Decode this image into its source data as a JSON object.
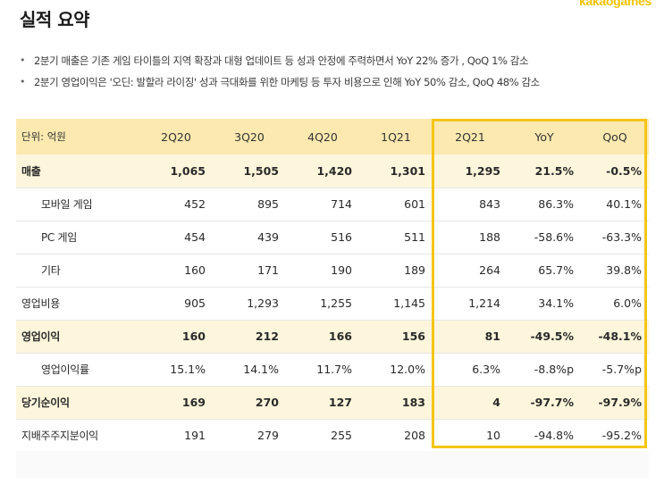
{
  "header": {
    "title": "실적 요약",
    "logo": "kakaogames"
  },
  "bullets": [
    "2분기 매출은 기존 게임 타이틀의 지역 확장과 대형 업데이트 등 성과 안정에 주력하면서 YoY 22% 증가 , QoQ 1% 감소",
    "2분기 영업이익은 '오딘: 발할라 라이징' 성과 극대화를 위한 마케팅 등 투자 비용으로 인해 YoY 50% 감소, QoQ 48% 감소"
  ],
  "table": {
    "unit": "단위: 억원",
    "columns": [
      "2Q20",
      "3Q20",
      "4Q20",
      "1Q21",
      "2Q21",
      "YoY",
      "QoQ"
    ],
    "rows": [
      {
        "label": "매출",
        "values": [
          "1,065",
          "1,505",
          "1,420",
          "1,301",
          "1,295",
          "21.5%",
          "-0.5%"
        ]
      },
      {
        "label": "모바일 게임",
        "values": [
          "452",
          "895",
          "714",
          "601",
          "843",
          "86.3%",
          "40.1%"
        ]
      },
      {
        "label": "PC 게임",
        "values": [
          "454",
          "439",
          "516",
          "511",
          "188",
          "-58.6%",
          "-63.3%"
        ]
      },
      {
        "label": "기타",
        "values": [
          "160",
          "171",
          "190",
          "189",
          "264",
          "65.7%",
          "39.8%"
        ]
      },
      {
        "label": "영업비용",
        "values": [
          "905",
          "1,293",
          "1,255",
          "1,145",
          "1,214",
          "34.1%",
          "6.0%"
        ]
      },
      {
        "label": "영업이익",
        "values": [
          "160",
          "212",
          "166",
          "156",
          "81",
          "-49.5%",
          "-48.1%"
        ]
      },
      {
        "label": "영업이익률",
        "values": [
          "15.1%",
          "14.1%",
          "11.7%",
          "12.0%",
          "6.3%",
          "-8.8%p",
          "-5.7%p"
        ]
      },
      {
        "label": "당기순이익",
        "values": [
          "169",
          "270",
          "127",
          "183",
          "4",
          "-97.7%",
          "-97.9%"
        ]
      },
      {
        "label": "지배주주지분이익",
        "values": [
          "191",
          "279",
          "255",
          "208",
          "10",
          "-94.8%",
          "-95.2%"
        ]
      }
    ]
  },
  "colors": {
    "header_bg": "#fbe9b0",
    "highlight_row_bg": "#fdf6dc",
    "frame_border": "#f5c518",
    "logo": "#f2c200"
  }
}
